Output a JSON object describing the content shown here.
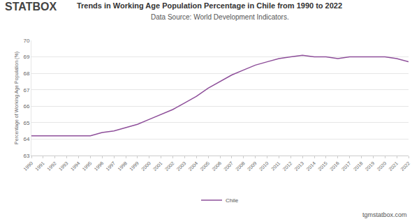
{
  "chart_data": {
    "type": "line",
    "title": "Trends in Working Age Population Percentage in Chile from 1990 to 2022",
    "subtitle": "Data Source: World Development Indicators.",
    "y_label": "Percentage of Working Age Population (%)",
    "annotations": [
      {
        "text": "STATBOX"
      },
      {
        "text": "tgmstatbox.com"
      }
    ],
    "x": [
      1990,
      1991,
      1992,
      1993,
      1994,
      1995,
      1996,
      1997,
      1998,
      1999,
      2000,
      2001,
      2002,
      2003,
      2004,
      2005,
      2006,
      2007,
      2008,
      2009,
      2010,
      2011,
      2012,
      2013,
      2014,
      2015,
      2016,
      2017,
      2018,
      2019,
      2020,
      2021,
      2022
    ],
    "series": [
      {
        "name": "Chile",
        "color": "#8e4f9a",
        "values": [
          64.2,
          64.2,
          64.2,
          64.2,
          64.2,
          64.2,
          64.4,
          64.5,
          64.7,
          64.9,
          65.2,
          65.5,
          65.8,
          66.2,
          66.6,
          67.1,
          67.5,
          67.9,
          68.2,
          68.5,
          68.7,
          68.9,
          69.0,
          69.1,
          69.0,
          69.0,
          68.9,
          69.0,
          69.0,
          69.0,
          69.0,
          68.9,
          68.7
        ]
      }
    ],
    "xlim": [
      1990,
      2022
    ],
    "xticks": [
      1990,
      1991,
      1992,
      1993,
      1994,
      1995,
      1996,
      1997,
      1998,
      1999,
      2000,
      2001,
      2002,
      2003,
      2004,
      2005,
      2006,
      2007,
      2008,
      2009,
      2010,
      2011,
      2012,
      2013,
      2014,
      2015,
      2016,
      2017,
      2018,
      2019,
      2020,
      2021,
      2022
    ],
    "ylim": [
      63,
      70
    ],
    "yticks": [
      63,
      64,
      65,
      66,
      67,
      68,
      69,
      70
    ],
    "grid": true,
    "legend": "bottom"
  }
}
